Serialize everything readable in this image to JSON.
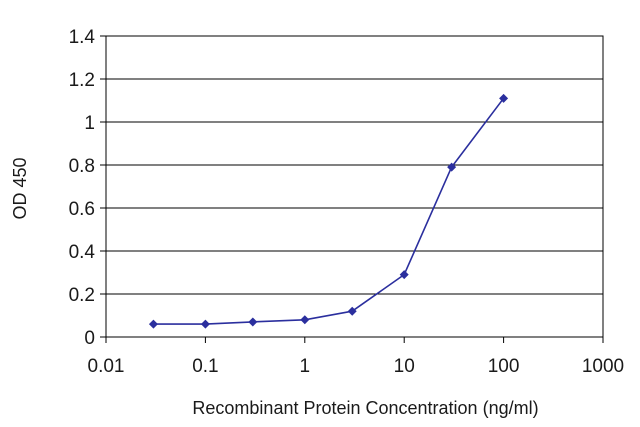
{
  "chart_data": {
    "type": "line",
    "title": "",
    "xlabel": "Recombinant Protein Concentration (ng/ml)",
    "ylabel": "OD 450",
    "xscale": "log",
    "xlim": [
      0.01,
      1000
    ],
    "ylim": [
      0,
      1.4
    ],
    "grid": "horizontal",
    "legend": "none",
    "x_ticks": [
      {
        "value": 0.01,
        "label": "0.01"
      },
      {
        "value": 0.1,
        "label": "0.1"
      },
      {
        "value": 1,
        "label": "1"
      },
      {
        "value": 10,
        "label": "10"
      },
      {
        "value": 100,
        "label": "100"
      },
      {
        "value": 1000,
        "label": "1000"
      }
    ],
    "y_ticks": [
      {
        "value": 0,
        "label": "0"
      },
      {
        "value": 0.2,
        "label": "0.2"
      },
      {
        "value": 0.4,
        "label": "0.4"
      },
      {
        "value": 0.6,
        "label": "0.6"
      },
      {
        "value": 0.8,
        "label": "0.8"
      },
      {
        "value": 1.0,
        "label": "1"
      },
      {
        "value": 1.2,
        "label": "1.2"
      },
      {
        "value": 1.4,
        "label": "1.4"
      }
    ],
    "series": [
      {
        "color": "#2b2f9e",
        "x": [
          0.03,
          0.1,
          0.3,
          1,
          3,
          10,
          30,
          100
        ],
        "y": [
          0.06,
          0.06,
          0.07,
          0.08,
          0.12,
          0.29,
          0.79,
          1.11
        ]
      }
    ],
    "colors": {
      "grid": "#000000",
      "frame": "#000000",
      "axis": "#000000",
      "background": "#ffffff"
    }
  }
}
